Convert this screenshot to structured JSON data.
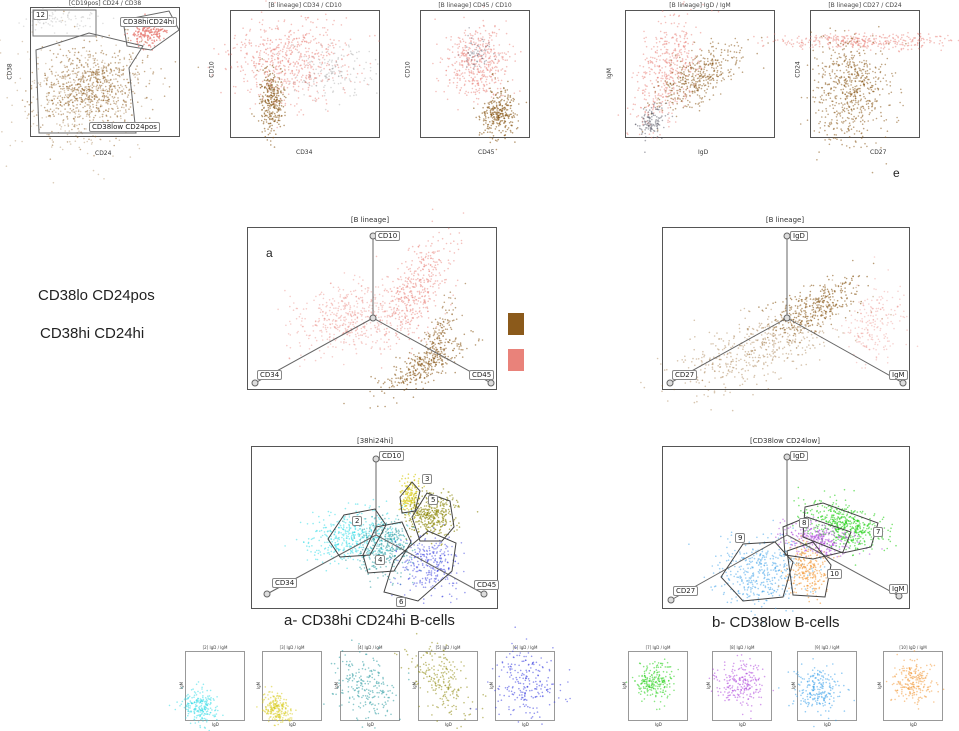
{
  "colors": {
    "brown": "#8b5a1b",
    "salmon": "#e9827a",
    "cyan": "#37dde8",
    "olive": "#8f8a10",
    "teal": "#2a9aa0",
    "blue": "#3a40e0",
    "green": "#26d11a",
    "violet": "#b14bdc",
    "skyblue": "#3aa0ea",
    "orange": "#f39b3c",
    "yellow": "#d8cc20"
  },
  "top_row": {
    "p1": {
      "title": "[CD19pos] CD24 / CD38",
      "xlabel": "CD24",
      "ylabel": "CD38",
      "gate_12": "12",
      "gate_hi": "CD38hiCD24hi",
      "gate_low": "CD38low CD24pos"
    },
    "p2": {
      "title": "[B lineage] CD34 / CD10",
      "xlabel": "CD34",
      "ylabel": "CD10"
    },
    "p3": {
      "title": "[B lineage] CD45 / CD10",
      "xlabel": "CD45",
      "ylabel": "CD10"
    },
    "p4": {
      "title": "[B lineage] IgD / IgM",
      "xlabel": "IgD",
      "ylabel": "IgM"
    },
    "p5": {
      "title": "[B lineage] CD27 / CD24",
      "xlabel": "CD27",
      "ylabel": "CD24"
    },
    "label_e": "e"
  },
  "legend": {
    "line1": "CD38lo CD24pos",
    "line2": "CD38hi CD24hi"
  },
  "radar_a": {
    "title": "[B lineage]",
    "letter": "a",
    "ax_top": "CD10",
    "ax_left": "CD34",
    "ax_right": "CD45"
  },
  "radar_b": {
    "title": "[B lineage]",
    "ax_top": "IgD",
    "ax_left": "CD27",
    "ax_right": "IgM"
  },
  "radar_c": {
    "title": "[38hi24hi]",
    "ax_top": "CD10",
    "ax_left": "CD34",
    "ax_right": "CD45",
    "pops": [
      "2",
      "3",
      "4",
      "5",
      "6"
    ]
  },
  "radar_d": {
    "title": "[CD38low CD24low]",
    "ax_top": "IgD",
    "ax_left": "CD27",
    "ax_right": "IgM",
    "pops": [
      "7",
      "8",
      "9",
      "10"
    ]
  },
  "captions": {
    "a": "a- CD38hi CD24hi B-cells",
    "b": "b- CD38low B-cells"
  },
  "mini_titles": [
    "[2] IgD / IgM",
    "[3] IgD / IgM",
    "[4] IgD / IgM",
    "[5] IgD / IgM",
    "[6] IgD / IgM",
    "[7] IgD / IgM",
    "[8] IgD / IgM",
    "[9] IgD / IgM",
    "[10] IgD / IgM"
  ],
  "mini_axes": {
    "x": "IgD",
    "y": "IgM"
  }
}
